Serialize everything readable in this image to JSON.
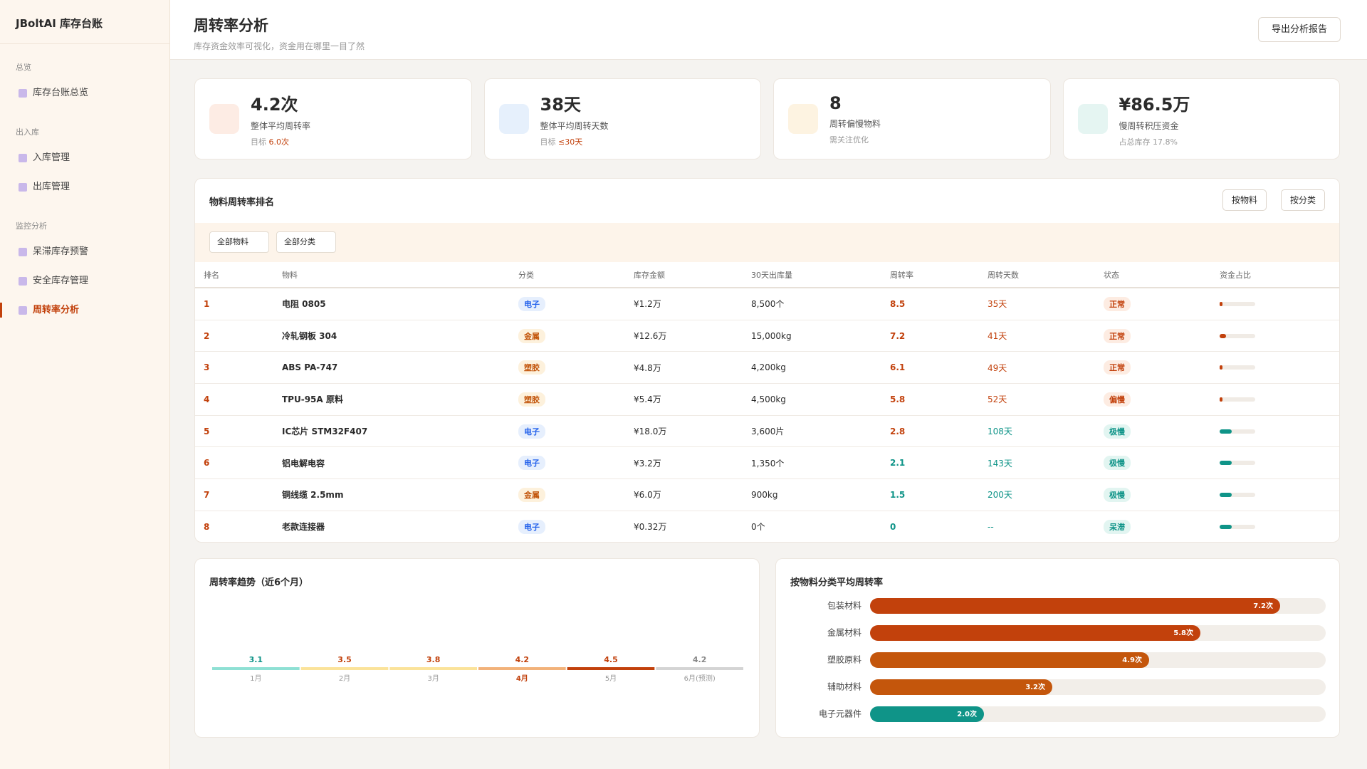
{
  "sidebar": {
    "brand": "JBoltAI 库存台账",
    "groups": [
      {
        "title": "总览",
        "items": [
          {
            "label": "库存台账总览"
          }
        ]
      },
      {
        "title": "出入库",
        "items": [
          {
            "label": "入库管理"
          },
          {
            "label": "出库管理"
          }
        ]
      },
      {
        "title": "监控分析",
        "items": [
          {
            "label": "呆滞库存预警"
          },
          {
            "label": "安全库存管理"
          },
          {
            "label": "周转率分析",
            "active": true
          }
        ]
      }
    ]
  },
  "header": {
    "title": "周转率分析",
    "subtitle": "库存资金效率可视化，资金用在哪里一目了然",
    "export_button": "导出分析报告"
  },
  "kpis": [
    {
      "value": "4.2次",
      "label": "整体平均周转率",
      "note": "目标",
      "note_value": "6.0次",
      "icon_color": "#fdece4"
    },
    {
      "value": "38天",
      "label": "整体平均周转天数",
      "note": "目标",
      "note_value": "≤30天",
      "icon_color": "#e6f0fc"
    },
    {
      "value": "8",
      "label": "周转偏慢物料",
      "note": "需关注优化",
      "icon_color": "#fdf3e1"
    },
    {
      "value": "¥86.5万",
      "label": "慢周转积压资金",
      "note": "占总库存 17.8%",
      "icon_color": "#e5f5f2"
    }
  ],
  "ranking": {
    "title": "物料周转率排名",
    "toggles": [
      "按物料",
      "按分类"
    ],
    "filters": [
      "全部物料",
      "全部分类"
    ],
    "columns": [
      "排名",
      "物料",
      "分类",
      "库存金额",
      "30天出库量",
      "周转率",
      "周转天数",
      "状态",
      "资金占比"
    ],
    "rows": [
      {
        "cells": [
          "1",
          "电阻 0805",
          "电子",
          "¥1.2万",
          "8,500个",
          "8.5",
          "35天",
          "正常"
        ],
        "category_tone": "blue",
        "rate_tone": "warm",
        "days_tone": "warm",
        "status_tone": "warm"
      },
      {
        "cells": [
          "2",
          "冷轧钢板 304",
          "金属",
          "¥12.6万",
          "15,000kg",
          "7.2",
          "41天",
          "正常"
        ],
        "category_tone": "amber",
        "rate_tone": "warm",
        "days_tone": "warm",
        "status_tone": "warm"
      },
      {
        "cells": [
          "3",
          "ABS PA-747",
          "塑胶",
          "¥4.8万",
          "4,200kg",
          "6.1",
          "49天",
          "正常"
        ],
        "category_tone": "amber",
        "rate_tone": "warm",
        "days_tone": "warm",
        "status_tone": "warm"
      },
      {
        "cells": [
          "4",
          "TPU-95A 原料",
          "塑胶",
          "¥5.4万",
          "4,500kg",
          "5.8",
          "52天",
          "偏慢"
        ],
        "category_tone": "amber",
        "rate_tone": "warm",
        "days_tone": "warm",
        "status_tone": "warm"
      },
      {
        "cells": [
          "5",
          "IC芯片 STM32F407",
          "电子",
          "¥18.0万",
          "3,600片",
          "2.8",
          "108天",
          "极慢"
        ],
        "category_tone": "blue",
        "rate_tone": "warm",
        "days_tone": "cool",
        "status_tone": "cool"
      },
      {
        "cells": [
          "6",
          "铝电解电容",
          "电子",
          "¥3.2万",
          "1,350个",
          "2.1",
          "143天",
          "极慢"
        ],
        "category_tone": "blue",
        "rate_tone": "cool",
        "days_tone": "cool",
        "status_tone": "cool"
      },
      {
        "cells": [
          "7",
          "铜线缆 2.5mm",
          "金属",
          "¥6.0万",
          "900kg",
          "1.5",
          "200天",
          "极慢"
        ],
        "category_tone": "amber",
        "rate_tone": "cool",
        "days_tone": "cool",
        "status_tone": "cool"
      },
      {
        "cells": [
          "8",
          "老款连接器",
          "电子",
          "¥0.32万",
          "0个",
          "0",
          "--",
          "呆滞"
        ],
        "category_tone": "blue",
        "rate_tone": "cool",
        "days_tone": "cool",
        "status_tone": "cool"
      }
    ]
  },
  "trend": {
    "title": "周转率趋势（近6个月）",
    "points": [
      {
        "label": "1月",
        "value": 3.1,
        "color": "#8fe0d4",
        "text_color": "#0f9488"
      },
      {
        "label": "2月",
        "value": 3.5,
        "color": "#fbe39a",
        "text_color": "#c2410c"
      },
      {
        "label": "3月",
        "value": 3.8,
        "color": "#fbe39a",
        "text_color": "#c2410c"
      },
      {
        "label": "4月",
        "value": 4.2,
        "color": "#f2b27a",
        "text_color": "#c2410c",
        "highlight": true
      },
      {
        "label": "5月",
        "value": 4.5,
        "color": "#c2410c",
        "text_color": "#c2410c"
      },
      {
        "label": "6月(预测)",
        "value": 4.2,
        "color": "#d4d4d4",
        "text_color": "#888888"
      }
    ]
  },
  "chart_data": {
    "type": "bar",
    "title": "按物料分类平均周转率",
    "categories": [
      "包装材料",
      "金属材料",
      "塑胶原料",
      "辅助材料",
      "电子元器件"
    ],
    "values": [
      7.2,
      5.8,
      4.9,
      3.2,
      2.0
    ],
    "value_labels": [
      "7.2次",
      "5.8次",
      "4.9次",
      "3.2次",
      "2.0次"
    ],
    "colors": [
      "#c2410c",
      "#c2410c",
      "#c4560c",
      "#c4560c",
      "#0f9488"
    ],
    "xlim": [
      0,
      8
    ]
  }
}
